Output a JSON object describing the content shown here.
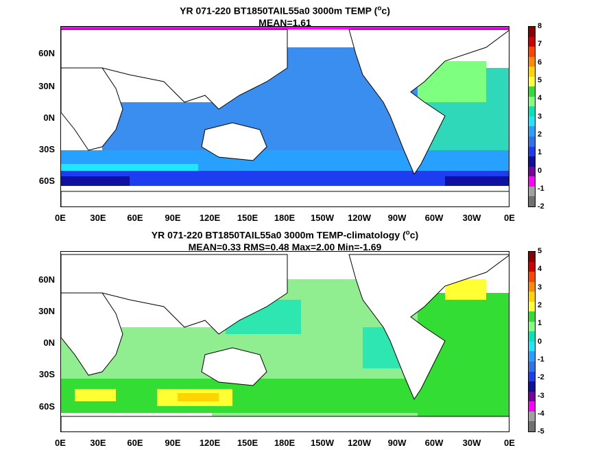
{
  "panel_top": {
    "title_line1": "YR 071-220 BT1850TAIL55a0 3000m TEMP (",
    "title_unit_sup": "o",
    "title_unit_tail": "c)",
    "title_line2": "MEAN=1.61",
    "colorbar": {
      "labels": [
        "8",
        "7",
        "6",
        "5",
        "4",
        "3",
        "2",
        "1",
        "0",
        "-1",
        "-2"
      ],
      "colors": [
        "#8b0000",
        "#d40000",
        "#ff4500",
        "#ff8c00",
        "#ffd400",
        "#ffff33",
        "#33dd33",
        "#7fff7f",
        "#00e6b8",
        "#1fe6ff",
        "#28a0ff",
        "#2e74e8",
        "#1e3cf0",
        "#1010a0",
        "#7a00a0",
        "#ff00ff",
        "#a0a0a0",
        "#707070"
      ]
    }
  },
  "panel_bottom": {
    "title_line1": "YR 071-220 BT1850TAIL55a0 3000m TEMP-climatology (",
    "title_unit_sup": "o",
    "title_unit_tail": "c)",
    "title_line2": "MEAN=0.33   RMS=0.48   Max=2.00   Min=-1.69",
    "colorbar": {
      "labels": [
        "5",
        "4",
        "3",
        "2",
        "1",
        "0",
        "-1",
        "-2",
        "-3",
        "-4",
        "-5"
      ],
      "colors": [
        "#8b0000",
        "#d40000",
        "#ff4500",
        "#ff8c00",
        "#ffd400",
        "#ffff33",
        "#33dd33",
        "#7fff7f",
        "#00e6b8",
        "#1fe6ff",
        "#28a0ff",
        "#2e74e8",
        "#1e3cf0",
        "#1010a0",
        "#7a00a0",
        "#ff00ff",
        "#a0a0a0",
        "#707070"
      ]
    }
  },
  "axes": {
    "lat_labels": [
      "60N",
      "30N",
      "0N",
      "30S",
      "60S"
    ],
    "lon_labels": [
      "0E",
      "30E",
      "60E",
      "90E",
      "120E",
      "150E",
      "180E",
      "150W",
      "120W",
      "90W",
      "60W",
      "30W",
      "0E"
    ]
  },
  "map_colors": {
    "land": "#ffffff",
    "top_main": "#3a8ef0",
    "top_light": "#28a0ff",
    "top_cyan": "#1fe6ff",
    "top_teal": "#2ed8b8",
    "top_green": "#7fff7f",
    "top_deep": "#1e3cf0",
    "top_navy": "#1010a0",
    "top_magenta": "#ff00ff",
    "bot_main": "#90ee90",
    "bot_green": "#33dd33",
    "bot_teal": "#2ee6b0",
    "bot_yellow": "#ffff33",
    "bot_gold": "#ffd400"
  }
}
